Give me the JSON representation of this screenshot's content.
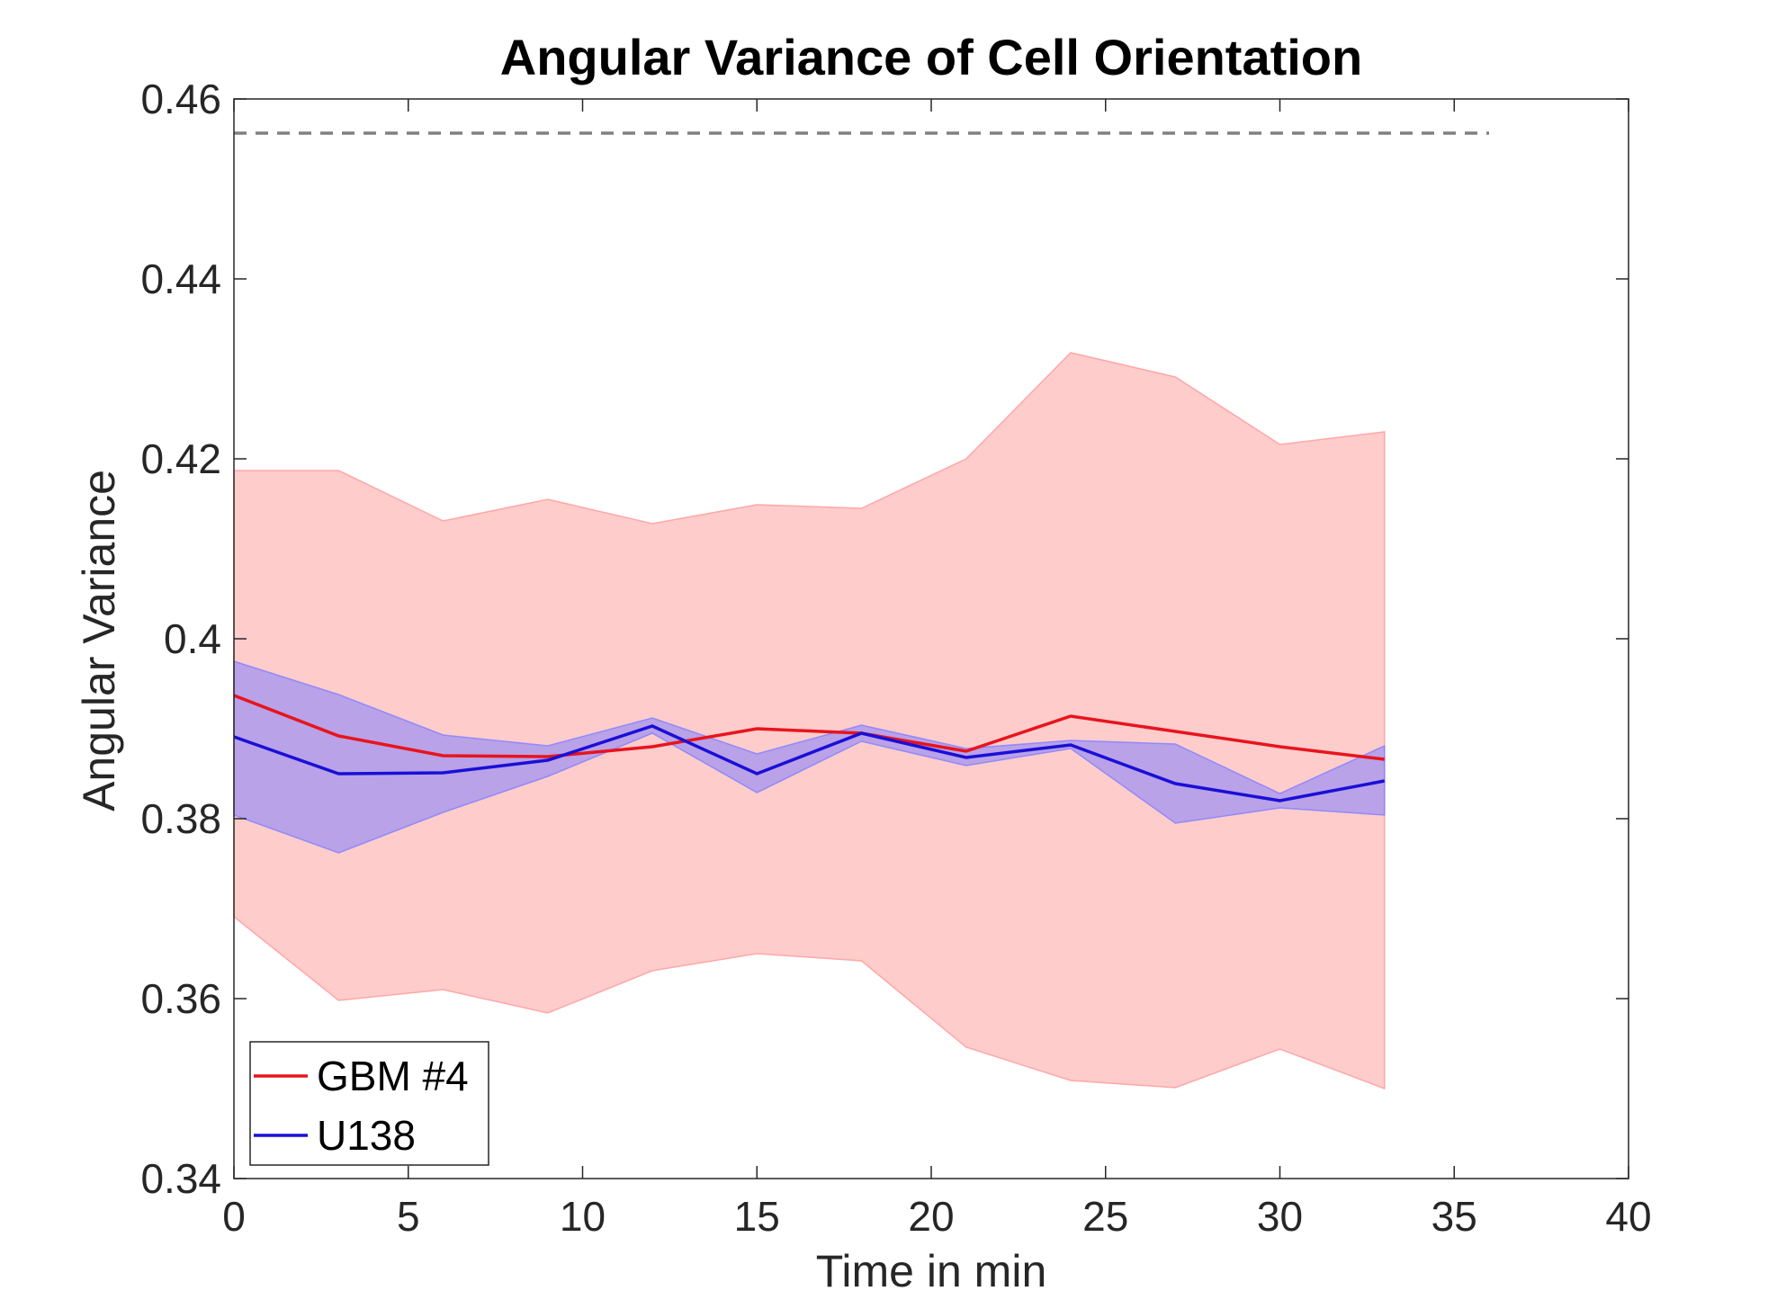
{
  "chart_data": {
    "type": "line",
    "title": "Angular Variance of Cell Orientation",
    "xlabel": "Time in min",
    "ylabel": "Angular Variance",
    "xlim": [
      0,
      40
    ],
    "ylim": [
      0.34,
      0.46
    ],
    "xticks": [
      0,
      5,
      10,
      15,
      20,
      25,
      30,
      35,
      40
    ],
    "xtick_labels": [
      "0",
      "5",
      "10",
      "15",
      "20",
      "25",
      "30",
      "35",
      "40"
    ],
    "yticks": [
      0.34,
      0.36,
      0.38,
      0.4,
      0.42,
      0.44,
      0.46
    ],
    "ytick_labels": [
      "0.34",
      "0.36",
      "0.38",
      "0.4",
      "0.42",
      "0.44",
      "0.46"
    ],
    "grid": false,
    "legend_position": "bottom-left",
    "x": [
      0,
      3,
      6,
      9,
      12,
      15,
      18,
      21,
      24,
      27,
      30,
      33
    ],
    "series": [
      {
        "name": "GBM #4",
        "color": "#e8141c",
        "band_color": "#ff9999",
        "values": [
          0.3937,
          0.3892,
          0.387,
          0.3869,
          0.388,
          0.39,
          0.3895,
          0.3875,
          0.3914,
          0.3897,
          0.388,
          0.3866
        ],
        "upper": [
          0.4187,
          0.4187,
          0.4131,
          0.4155,
          0.4128,
          0.4149,
          0.4145,
          0.42,
          0.4318,
          0.4291,
          0.4216,
          0.423
        ],
        "lower": [
          0.3691,
          0.3598,
          0.361,
          0.3584,
          0.3631,
          0.365,
          0.3642,
          0.3546,
          0.3509,
          0.3501,
          0.3544,
          0.35
        ]
      },
      {
        "name": "U138",
        "color": "#1a0fd6",
        "band_color": "#8080ff",
        "values": [
          0.3891,
          0.385,
          0.3851,
          0.3865,
          0.3903,
          0.385,
          0.3895,
          0.3868,
          0.3882,
          0.3839,
          0.382,
          0.3842
        ],
        "upper": [
          0.3975,
          0.3938,
          0.3893,
          0.3881,
          0.3912,
          0.3872,
          0.3904,
          0.3878,
          0.3887,
          0.3883,
          0.3828,
          0.3881
        ],
        "lower": [
          0.3804,
          0.3762,
          0.3807,
          0.3847,
          0.3895,
          0.3829,
          0.3886,
          0.3859,
          0.3878,
          0.3795,
          0.3812,
          0.3804
        ]
      }
    ],
    "reference_line": {
      "y": 0.4562,
      "x_range": [
        0,
        36
      ],
      "style": "dashed",
      "color": "#808080"
    }
  }
}
